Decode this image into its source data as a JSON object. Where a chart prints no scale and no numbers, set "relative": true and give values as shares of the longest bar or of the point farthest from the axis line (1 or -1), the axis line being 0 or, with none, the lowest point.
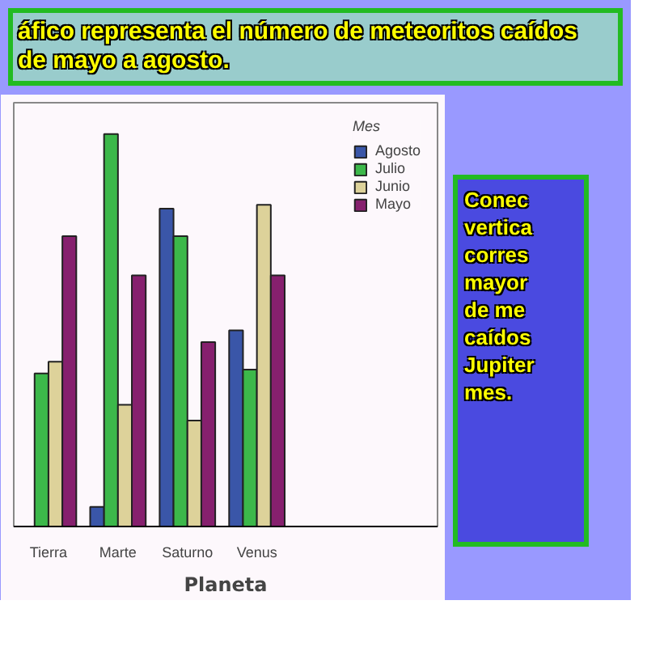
{
  "chart_data": {
    "type": "bar",
    "title": "áfico representa el número de meteoritos caídos\nde mayo a agosto.",
    "xlabel": "Planeta",
    "legend_title": "Mes",
    "legend": "right",
    "grid": false,
    "relative": true,
    "categories": [
      "Tierra",
      "Marte",
      "Saturno",
      "Venus",
      null
    ],
    "series": [
      {
        "name": "Agosto",
        "color": "#3a56a8",
        "values": [
          null,
          0.05,
          0.81,
          0.5,
          null
        ]
      },
      {
        "name": "Julio",
        "color": "#3cb84a",
        "values": [
          0.39,
          1,
          0.74,
          0.4,
          null
        ]
      },
      {
        "name": "Junio",
        "color": "#ddd29a",
        "values": [
          0.42,
          0.31,
          0.27,
          0.82,
          null
        ]
      },
      {
        "name": "Mayo",
        "color": "#86206e",
        "values": [
          0.74,
          0.64,
          0.47,
          0.64,
          null
        ]
      }
    ],
    "annotations": [
      "Conec\nvertica\ncorres\nmayor\nde me\ncaídos\nJupiter\nmes."
    ]
  }
}
